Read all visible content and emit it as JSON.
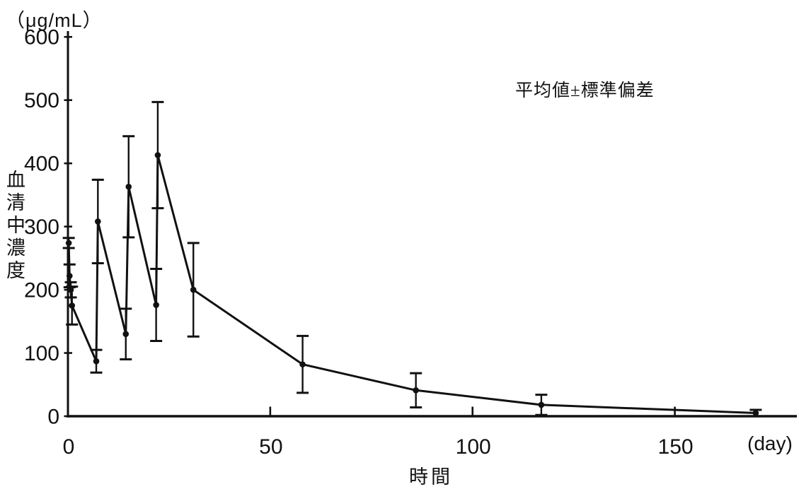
{
  "chart_data": {
    "type": "line",
    "description_visible_text_only": true,
    "y_axis": {
      "unit_label": "（μg/mL）",
      "label": "血清中濃度",
      "min": 0,
      "max": 600,
      "ticks": [
        600,
        500,
        400,
        300,
        200,
        100,
        0
      ]
    },
    "x_axis": {
      "label": "時間",
      "unit_label": "(day)",
      "min": 0,
      "max": 180,
      "ticks": [
        0,
        50,
        100,
        150
      ]
    },
    "annotation": "平均値±標準偏差",
    "legend": "none",
    "grid": "off",
    "colors": {
      "line": "#111111",
      "background": "#ffffff"
    },
    "series": [
      {
        "name": "血清中濃度 (平均値±標準偏差)",
        "marker": "filled-circle",
        "error_bars": "standard-deviation",
        "points": [
          {
            "day": 0.2,
            "mean": 274,
            "sd": 8
          },
          {
            "day": 0.4,
            "mean": 222,
            "sd": 18
          },
          {
            "day": 0.7,
            "mean": 200,
            "sd": 12
          },
          {
            "day": 1.0,
            "mean": 175,
            "sd": 30
          },
          {
            "day": 7.0,
            "mean": 87,
            "sd": 18
          },
          {
            "day": 7.4,
            "mean": 308,
            "sd": 66
          },
          {
            "day": 14.3,
            "mean": 130,
            "sd": 40
          },
          {
            "day": 15.0,
            "mean": 363,
            "sd": 80
          },
          {
            "day": 21.8,
            "mean": 176,
            "sd": 57
          },
          {
            "day": 22.2,
            "mean": 413,
            "sd": 84
          },
          {
            "day": 31.0,
            "mean": 200,
            "sd": 74
          },
          {
            "day": 58.0,
            "mean": 82,
            "sd": 45
          },
          {
            "day": 86.0,
            "mean": 41,
            "sd": 27
          },
          {
            "day": 117.0,
            "mean": 18,
            "sd": 16
          },
          {
            "day": 170.0,
            "mean": 5,
            "sd": 5
          }
        ]
      }
    ]
  }
}
